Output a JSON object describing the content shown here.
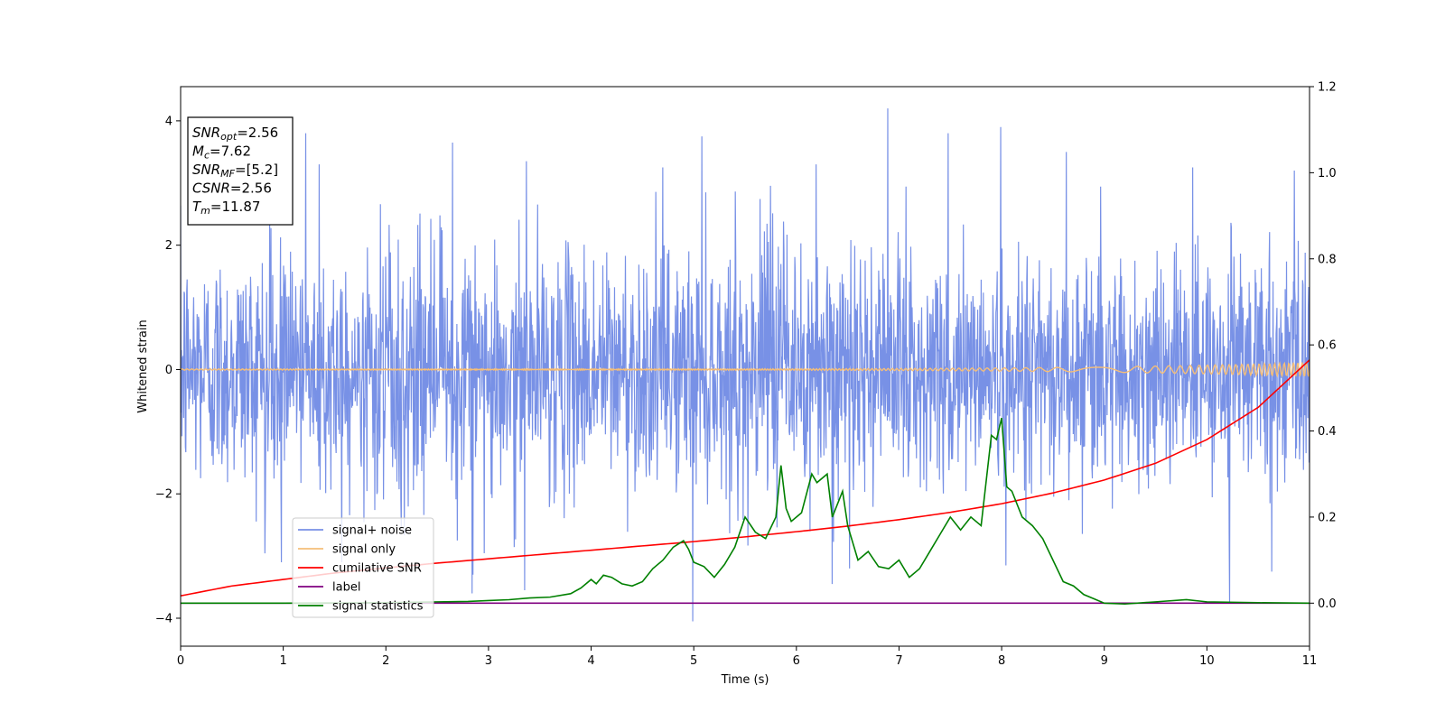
{
  "chart_data": {
    "type": "line",
    "title": "",
    "xlabel": "Time (s)",
    "ylabel": "Whitened strain",
    "xlim": [
      0,
      11
    ],
    "ylim_left": [
      -4.45,
      4.55
    ],
    "ylim_right": [
      -0.1,
      1.2
    ],
    "xticks": [
      0,
      1,
      2,
      3,
      4,
      5,
      6,
      7,
      8,
      9,
      10,
      11
    ],
    "yticks_left": [
      -4,
      -2,
      0,
      2,
      4
    ],
    "yticks_right": [
      0.0,
      0.2,
      0.4,
      0.6,
      0.8,
      1.0,
      1.2
    ],
    "xtick_labels": [
      "0",
      "1",
      "2",
      "3",
      "4",
      "5",
      "6",
      "7",
      "8",
      "9",
      "10",
      "11"
    ],
    "ytick_left_labels": [
      "−4",
      "−2",
      "0",
      "2",
      "4"
    ],
    "ytick_right_labels": [
      "0.0",
      "0.2",
      "0.4",
      "0.6",
      "0.8",
      "1.0",
      "1.2"
    ],
    "grid": false,
    "legend_position": "lower-left",
    "info_box": {
      "position": "upper-left",
      "lines": [
        {
          "sym": "SNR",
          "sub": "opt",
          "val": "=2.56"
        },
        {
          "sym": "M",
          "sub": "c",
          "val": "=7.62"
        },
        {
          "sym": "SNR",
          "sub": "MF",
          "val": "=[5.2]"
        },
        {
          "sym": "CSNR",
          "sub": "",
          "val": "=2.56"
        },
        {
          "sym": "T",
          "sub": "m",
          "val": "=11.87"
        }
      ]
    },
    "series": [
      {
        "name": "signal+ noise",
        "axis": "left",
        "color": "#7891e6",
        "kind": "noise",
        "description_values": {
          "band_low": -1.7,
          "band_high": 1.5,
          "spike_max": 4.2,
          "spike_min": -4.05
        },
        "spikes": [
          {
            "x": 1.22,
            "y": 3.8
          },
          {
            "x": 1.35,
            "y": 3.3
          },
          {
            "x": 2.65,
            "y": 3.65
          },
          {
            "x": 3.37,
            "y": 3.35
          },
          {
            "x": 4.7,
            "y": 3.25
          },
          {
            "x": 5.08,
            "y": 3.75
          },
          {
            "x": 6.19,
            "y": 3.3
          },
          {
            "x": 6.89,
            "y": 4.2
          },
          {
            "x": 7.48,
            "y": 3.8
          },
          {
            "x": 7.99,
            "y": 3.9
          },
          {
            "x": 8.63,
            "y": 3.5
          },
          {
            "x": 9.86,
            "y": 3.25
          },
          {
            "x": 10.85,
            "y": 3.2
          },
          {
            "x": 4.99,
            "y": -4.05
          },
          {
            "x": 10.22,
            "y": -3.75
          },
          {
            "x": 2.84,
            "y": -3.6
          },
          {
            "x": 3.35,
            "y": -3.55
          },
          {
            "x": 6.35,
            "y": -3.45
          },
          {
            "x": 0.98,
            "y": -3.1
          },
          {
            "x": 1.57,
            "y": -3.1
          },
          {
            "x": 2.85,
            "y": -3.3
          },
          {
            "x": 8.04,
            "y": -3.15
          },
          {
            "x": 10.63,
            "y": -3.25
          },
          {
            "x": 6.52,
            "y": -3.2
          }
        ]
      },
      {
        "name": "signal only",
        "axis": "left",
        "color": "#f5be78",
        "kind": "chirp",
        "description_values": {
          "amp_start": 0.01,
          "amp_end": 0.12
        }
      },
      {
        "name": "cumilative SNR",
        "axis": "right",
        "color": "#ff0000",
        "kind": "curve",
        "x": [
          0,
          0.5,
          1,
          1.5,
          2,
          2.5,
          3,
          3.5,
          4,
          4.5,
          5,
          5.5,
          6,
          6.5,
          7,
          7.5,
          8,
          8.5,
          9,
          9.5,
          10,
          10.5,
          11
        ],
        "y": [
          0.017,
          0.04,
          0.055,
          0.07,
          0.082,
          0.093,
          0.103,
          0.113,
          0.123,
          0.133,
          0.143,
          0.154,
          0.166,
          0.179,
          0.194,
          0.211,
          0.231,
          0.256,
          0.286,
          0.325,
          0.38,
          0.455,
          0.565
        ]
      },
      {
        "name": "label",
        "axis": "right",
        "color": "#800080",
        "kind": "flat",
        "x": [
          0,
          11
        ],
        "y": [
          0.0,
          0.0
        ]
      },
      {
        "name": "signal statistics",
        "axis": "right",
        "color": "#008000",
        "kind": "curve",
        "x": [
          0,
          1,
          2,
          2.5,
          2.8,
          3.0,
          3.2,
          3.4,
          3.6,
          3.8,
          3.9,
          4.0,
          4.05,
          4.12,
          4.2,
          4.3,
          4.4,
          4.5,
          4.6,
          4.7,
          4.8,
          4.9,
          4.95,
          5.0,
          5.1,
          5.2,
          5.3,
          5.4,
          5.5,
          5.6,
          5.7,
          5.8,
          5.85,
          5.9,
          5.95,
          6.05,
          6.15,
          6.2,
          6.3,
          6.35,
          6.45,
          6.5,
          6.6,
          6.7,
          6.8,
          6.9,
          7.0,
          7.1,
          7.2,
          7.3,
          7.4,
          7.5,
          7.6,
          7.7,
          7.8,
          7.9,
          7.95,
          8.0,
          8.05,
          8.1,
          8.2,
          8.3,
          8.4,
          8.5,
          8.6,
          8.7,
          8.8,
          8.9,
          9.0,
          9.2,
          9.5,
          9.8,
          10.0,
          10.5,
          11.0
        ],
        "y": [
          0.0,
          0.0,
          0.001,
          0.003,
          0.004,
          0.006,
          0.008,
          0.012,
          0.014,
          0.022,
          0.035,
          0.055,
          0.045,
          0.065,
          0.06,
          0.045,
          0.04,
          0.05,
          0.08,
          0.1,
          0.13,
          0.145,
          0.125,
          0.095,
          0.085,
          0.06,
          0.09,
          0.13,
          0.2,
          0.165,
          0.15,
          0.2,
          0.32,
          0.22,
          0.19,
          0.21,
          0.3,
          0.28,
          0.3,
          0.2,
          0.26,
          0.18,
          0.1,
          0.12,
          0.085,
          0.08,
          0.1,
          0.06,
          0.08,
          0.12,
          0.16,
          0.2,
          0.17,
          0.2,
          0.18,
          0.39,
          0.38,
          0.43,
          0.27,
          0.26,
          0.2,
          0.18,
          0.15,
          0.1,
          0.05,
          0.04,
          0.02,
          0.01,
          0.0,
          -0.002,
          0.003,
          0.008,
          0.003,
          0.001,
          0.0
        ]
      }
    ]
  }
}
